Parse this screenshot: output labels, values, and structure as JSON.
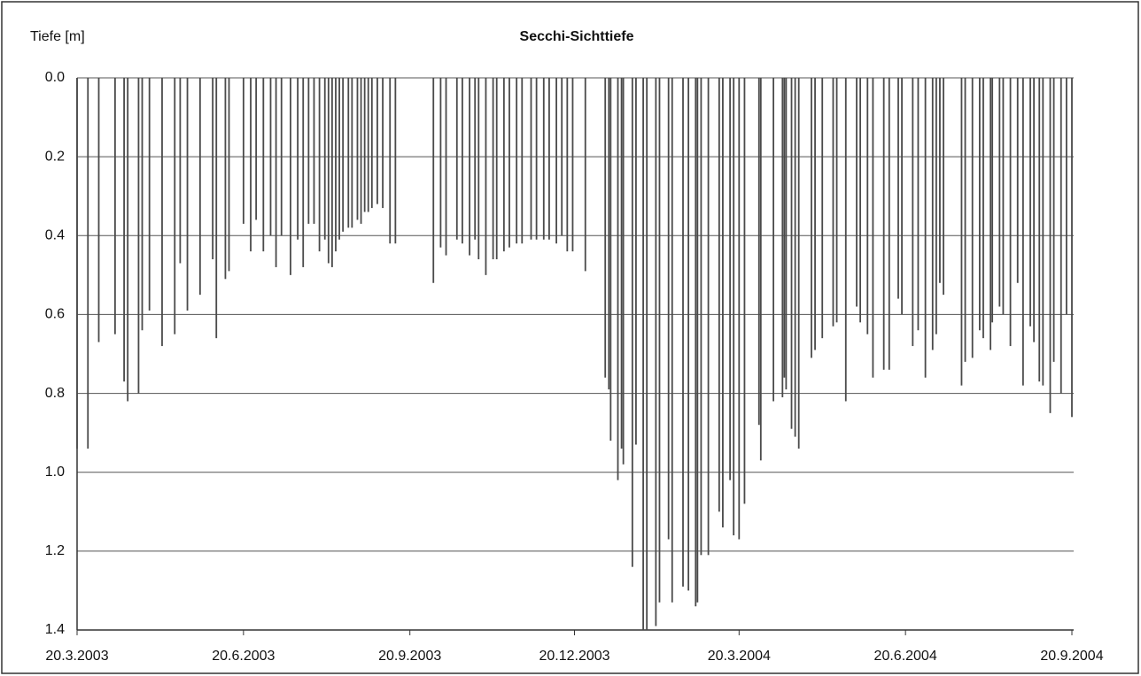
{
  "chart_data": {
    "type": "bar",
    "title": "Secchi-Sichttiefe",
    "y_label": "Tiefe [m]",
    "x": [
      "2003-03-20",
      "2003-03-26",
      "2003-04-01",
      "2003-04-10",
      "2003-04-15",
      "2003-04-17",
      "2003-04-23",
      "2003-04-25",
      "2003-04-29",
      "2003-05-06",
      "2003-05-13",
      "2003-05-16",
      "2003-05-20",
      "2003-05-27",
      "2003-06-03",
      "2003-06-05",
      "2003-06-10",
      "2003-06-12",
      "2003-06-20",
      "2003-06-24",
      "2003-06-27",
      "2003-07-01",
      "2003-07-05",
      "2003-07-08",
      "2003-07-11",
      "2003-07-16",
      "2003-07-20",
      "2003-07-23",
      "2003-07-26",
      "2003-07-29",
      "2003-08-01",
      "2003-08-04",
      "2003-08-06",
      "2003-08-08",
      "2003-08-10",
      "2003-08-12",
      "2003-08-14",
      "2003-08-17",
      "2003-08-19",
      "2003-08-22",
      "2003-08-24",
      "2003-08-26",
      "2003-08-28",
      "2003-08-30",
      "2003-09-02",
      "2003-09-05",
      "2003-09-09",
      "2003-09-12",
      "2003-10-03",
      "2003-10-07",
      "2003-10-10",
      "2003-10-16",
      "2003-10-19",
      "2003-10-23",
      "2003-10-26",
      "2003-10-28",
      "2003-11-01",
      "2003-11-05",
      "2003-11-07",
      "2003-11-11",
      "2003-11-14",
      "2003-11-18",
      "2003-11-21",
      "2003-11-26",
      "2003-11-29",
      "2003-12-03",
      "2003-12-06",
      "2003-12-10",
      "2003-12-13",
      "2003-12-16",
      "2003-12-19",
      "2003-12-26",
      "2004-01-06",
      "2004-01-08",
      "2004-01-09",
      "2004-01-13",
      "2004-01-15",
      "2004-01-16",
      "2004-01-21",
      "2004-01-23",
      "2004-01-27",
      "2004-01-29",
      "2004-02-03",
      "2004-02-05",
      "2004-02-10",
      "2004-02-12",
      "2004-02-18",
      "2004-02-21",
      "2004-02-25",
      "2004-02-26",
      "2004-02-28",
      "2004-03-03",
      "2004-03-09",
      "2004-03-11",
      "2004-03-15",
      "2004-03-17",
      "2004-03-20",
      "2004-03-23",
      "2004-03-31",
      "2004-04-01",
      "2004-04-08",
      "2004-04-13",
      "2004-04-14",
      "2004-04-15",
      "2004-04-18",
      "2004-04-20",
      "2004-04-22",
      "2004-04-29",
      "2004-05-01",
      "2004-05-05",
      "2004-05-11",
      "2004-05-13",
      "2004-05-18",
      "2004-05-24",
      "2004-05-26",
      "2004-05-30",
      "2004-06-02",
      "2004-06-08",
      "2004-06-11",
      "2004-06-16",
      "2004-06-18",
      "2004-06-24",
      "2004-06-27",
      "2004-07-01",
      "2004-07-05",
      "2004-07-07",
      "2004-07-09",
      "2004-07-11",
      "2004-07-21",
      "2004-07-23",
      "2004-07-27",
      "2004-07-31",
      "2004-08-02",
      "2004-08-06",
      "2004-08-07",
      "2004-08-11",
      "2004-08-13",
      "2004-08-17",
      "2004-08-21",
      "2004-08-24",
      "2004-08-28",
      "2004-08-30",
      "2004-09-02",
      "2004-09-04",
      "2004-09-08",
      "2004-09-10",
      "2004-09-14",
      "2004-09-17",
      "2004-09-20"
    ],
    "values": [
      0.94,
      0.94,
      0.67,
      0.65,
      0.77,
      0.82,
      0.8,
      0.64,
      0.59,
      0.68,
      0.65,
      0.47,
      0.59,
      0.55,
      0.46,
      0.66,
      0.51,
      0.49,
      0.37,
      0.44,
      0.36,
      0.44,
      0.4,
      0.48,
      0.4,
      0.5,
      0.41,
      0.48,
      0.37,
      0.37,
      0.44,
      0.41,
      0.47,
      0.48,
      0.44,
      0.41,
      0.39,
      0.38,
      0.38,
      0.36,
      0.37,
      0.34,
      0.34,
      0.33,
      0.32,
      0.33,
      0.42,
      0.42,
      0.52,
      0.43,
      0.45,
      0.41,
      0.42,
      0.45,
      0.41,
      0.46,
      0.5,
      0.46,
      0.46,
      0.44,
      0.43,
      0.42,
      0.42,
      0.41,
      0.41,
      0.41,
      0.41,
      0.42,
      0.4,
      0.44,
      0.44,
      0.49,
      0.76,
      0.79,
      0.92,
      1.02,
      0.94,
      0.98,
      1.24,
      0.93,
      1.4,
      1.4,
      1.39,
      1.33,
      1.17,
      1.33,
      1.29,
      1.3,
      1.34,
      1.33,
      1.21,
      1.21,
      1.1,
      1.14,
      1.02,
      1.16,
      1.17,
      1.08,
      0.88,
      0.97,
      0.82,
      0.81,
      0.76,
      0.79,
      0.89,
      0.91,
      0.94,
      0.71,
      0.69,
      0.66,
      0.63,
      0.62,
      0.82,
      0.58,
      0.62,
      0.65,
      0.76,
      0.74,
      0.74,
      0.56,
      0.6,
      0.68,
      0.64,
      0.76,
      0.69,
      0.65,
      0.52,
      0.55,
      0.78,
      0.72,
      0.71,
      0.64,
      0.66,
      0.69,
      0.62,
      0.58,
      0.6,
      0.68,
      0.52,
      0.78,
      0.63,
      0.67,
      0.77,
      0.78,
      0.85,
      0.72,
      0.8,
      0.6,
      0.86
    ],
    "color": "#4a4a4a",
    "xlim": [
      "2003-03-20",
      "2004-09-20"
    ],
    "xticks": [
      {
        "value": "2003-03-20",
        "label": "20.3.2003"
      },
      {
        "value": "2003-06-20",
        "label": "20.6.2003"
      },
      {
        "value": "2003-09-20",
        "label": "20.9.2003"
      },
      {
        "value": "2003-12-20",
        "label": "20.12.2003"
      },
      {
        "value": "2004-03-20",
        "label": "20.3.2004"
      },
      {
        "value": "2004-06-20",
        "label": "20.6.2004"
      },
      {
        "value": "2004-09-20",
        "label": "20.9.2004"
      }
    ],
    "ylim": [
      0,
      1.4
    ],
    "y_inverted": true,
    "yticks": [
      {
        "value": 0,
        "label": "0.0"
      },
      0.2,
      0.4,
      0.6,
      0.8,
      {
        "value": 1,
        "label": "1.0"
      },
      1.2,
      1.4
    ],
    "grid": true
  }
}
